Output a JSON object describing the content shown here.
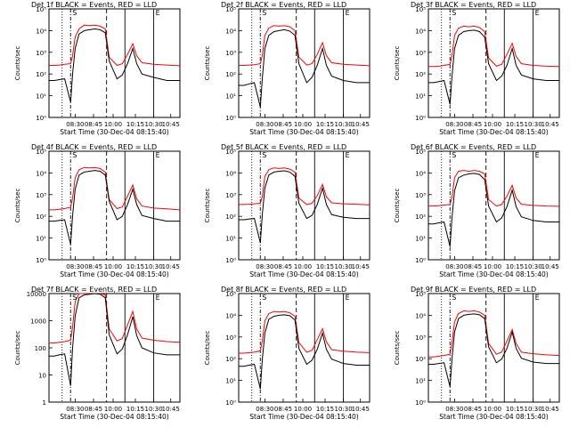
{
  "colors": {
    "events": "#000000",
    "lld": "#ff0000",
    "background": "#ffffff"
  },
  "chart_data": [
    {
      "type": "line",
      "title": "Det 1f BLACK = Events, RED = LLD",
      "xlabel": "Start Time (30-Dec-04 08:15:40)",
      "ylabel": "Counts/sec",
      "x_tick_labels": [
        "08:30",
        "08:45",
        "10:00",
        "10:15",
        "10:30",
        "10:45"
      ],
      "y_tick_labels": [
        "10⁰",
        "10¹",
        "10²",
        "10³",
        "10⁴",
        "10⁵"
      ],
      "ylim": [
        1,
        100000
      ],
      "y_scale": "log",
      "markers": [
        "S",
        "E"
      ],
      "series": [
        {
          "name": "Events",
          "color": "#000000",
          "values": [
            50,
            50,
            55,
            60,
            5,
            100,
            1500,
            7000,
            10000,
            11000,
            12000,
            11000,
            8000,
            400,
            60,
            90,
            300,
            1500,
            300,
            100,
            70,
            50,
            50
          ]
        },
        {
          "name": "LLD",
          "color": "#ff0000",
          "values": [
            250,
            250,
            260,
            280,
            300,
            700,
            5000,
            12000,
            18000,
            17000,
            18000,
            16000,
            12000,
            600,
            250,
            300,
            800,
            2500,
            700,
            330,
            280,
            260,
            240
          ]
        }
      ]
    },
    {
      "type": "line",
      "title": "Det 2f BLACK = Events, RED = LLD",
      "xlabel": "Start Time (30-Dec-04 08:15:40)",
      "ylabel": "Counts/sec",
      "x_tick_labels": [
        "08:30",
        "08:45",
        "10:00",
        "10:15",
        "10:30",
        "10:45"
      ],
      "y_tick_labels": [
        "10⁰",
        "10¹",
        "10²",
        "10³",
        "10⁴",
        "10⁵"
      ],
      "ylim": [
        1,
        100000
      ],
      "y_scale": "log",
      "markers": [
        "S",
        "E"
      ],
      "series": [
        {
          "name": "Events",
          "color": "#000000",
          "values": [
            30,
            30,
            35,
            40,
            3,
            60,
            1500,
            6000,
            9000,
            10000,
            11000,
            9500,
            6000,
            300,
            40,
            70,
            250,
            1500,
            250,
            80,
            50,
            40,
            40
          ]
        },
        {
          "name": "LLD",
          "color": "#ff0000",
          "values": [
            250,
            250,
            260,
            270,
            300,
            700,
            6000,
            13000,
            17000,
            16000,
            17000,
            15000,
            10000,
            600,
            260,
            300,
            800,
            2800,
            700,
            330,
            280,
            260,
            240
          ]
        }
      ]
    },
    {
      "type": "line",
      "title": "Det 3f BLACK = Events, RED = LLD",
      "xlabel": "Start Time (30-Dec-04 08:15:40)",
      "ylabel": "Counts/sec",
      "x_tick_labels": [
        "08:30",
        "08:45",
        "10:00",
        "10:15",
        "10:30",
        "10:45"
      ],
      "y_tick_labels": [
        "10⁰",
        "10¹",
        "10²",
        "10³",
        "10⁴",
        "10⁵"
      ],
      "ylim": [
        1,
        100000
      ],
      "y_scale": "log",
      "markers": [
        "S",
        "E"
      ],
      "series": [
        {
          "name": "Events",
          "color": "#000000",
          "values": [
            40,
            40,
            45,
            50,
            4,
            80,
            1500,
            6000,
            9000,
            10000,
            10500,
            9000,
            5000,
            300,
            50,
            80,
            250,
            1500,
            250,
            90,
            60,
            50,
            50
          ]
        },
        {
          "name": "LLD",
          "color": "#ff0000",
          "values": [
            220,
            220,
            230,
            250,
            280,
            700,
            6000,
            13000,
            16000,
            15000,
            16000,
            14000,
            9000,
            550,
            230,
            280,
            800,
            2600,
            650,
            300,
            250,
            230,
            220
          ]
        }
      ]
    },
    {
      "type": "line",
      "title": "Det 4f BLACK = Events, RED = LLD",
      "xlabel": "Start Time (30-Dec-04 08:15:40)",
      "ylabel": "Counts/sec",
      "x_tick_labels": [
        "08:30",
        "08:45",
        "10:00",
        "10:15",
        "10:30",
        "10:45"
      ],
      "y_tick_labels": [
        "10⁰",
        "10¹",
        "10²",
        "10³",
        "10⁴",
        "10⁵"
      ],
      "ylim": [
        1,
        100000
      ],
      "y_scale": "log",
      "markers": [
        "S",
        "E"
      ],
      "series": [
        {
          "name": "Events",
          "color": "#000000",
          "values": [
            60,
            60,
            65,
            70,
            5,
            110,
            1800,
            8000,
            11000,
            12000,
            13000,
            12000,
            8000,
            500,
            70,
            100,
            350,
            1800,
            350,
            110,
            80,
            60,
            60
          ]
        },
        {
          "name": "LLD",
          "color": "#ff0000",
          "values": [
            200,
            200,
            210,
            230,
            260,
            700,
            6000,
            14000,
            18000,
            17000,
            18000,
            16000,
            11000,
            600,
            230,
            270,
            850,
            2800,
            650,
            300,
            240,
            220,
            200
          ]
        }
      ]
    },
    {
      "type": "line",
      "title": "Det 5f BLACK = Events, RED = LLD",
      "xlabel": "Start Time (30-Dec-04 08:15:40)",
      "ylabel": "Counts/sec",
      "x_tick_labels": [
        "08:30",
        "08:45",
        "10:00",
        "10:15",
        "10:30",
        "10:45"
      ],
      "y_tick_labels": [
        "10⁰",
        "10¹",
        "10²",
        "10³",
        "10⁴",
        "10⁵"
      ],
      "ylim": [
        1,
        100000
      ],
      "y_scale": "log",
      "markers": [
        "S",
        "E"
      ],
      "series": [
        {
          "name": "Events",
          "color": "#000000",
          "values": [
            70,
            70,
            75,
            80,
            6,
            120,
            2000,
            8000,
            11000,
            12000,
            12500,
            11000,
            7000,
            400,
            80,
            110,
            350,
            2000,
            350,
            120,
            90,
            80,
            80
          ]
        },
        {
          "name": "LLD",
          "color": "#ff0000",
          "values": [
            350,
            350,
            360,
            380,
            400,
            800,
            7000,
            14000,
            17000,
            16000,
            17000,
            15000,
            11000,
            700,
            350,
            400,
            900,
            3000,
            800,
            420,
            380,
            360,
            340
          ]
        }
      ]
    },
    {
      "type": "line",
      "title": "Det 6f BLACK = Events, RED = LLD",
      "xlabel": "Start Time (30-Dec-04 08:15:40)",
      "ylabel": "Counts/sec",
      "x_tick_labels": [
        "08:30",
        "08:45",
        "10:00",
        "10:15",
        "10:30",
        "10:45"
      ],
      "y_tick_labels": [
        "10⁰",
        "10¹",
        "10²",
        "10³",
        "10⁴",
        "10⁵"
      ],
      "ylim": [
        1,
        100000
      ],
      "y_scale": "log",
      "markers": [
        "S",
        "E"
      ],
      "series": [
        {
          "name": "Events",
          "color": "#000000",
          "values": [
            45,
            45,
            50,
            55,
            4,
            90,
            1500,
            6000,
            8000,
            9000,
            9500,
            8500,
            5000,
            300,
            55,
            85,
            280,
            1600,
            280,
            95,
            65,
            55,
            55
          ]
        },
        {
          "name": "LLD",
          "color": "#ff0000",
          "values": [
            300,
            300,
            310,
            330,
            350,
            750,
            6000,
            12000,
            13000,
            12000,
            13000,
            12000,
            9000,
            600,
            300,
            350,
            850,
            2700,
            700,
            360,
            320,
            300,
            290
          ]
        }
      ]
    },
    {
      "type": "line",
      "title": "Det 7f BLACK = Events, RED = LLD",
      "xlabel": "Start Time (30-Dec-04 08:15:40)",
      "ylabel": "Counts/sec",
      "x_tick_labels": [
        "08:30",
        "08:45",
        "10:00",
        "10:15",
        "10:30",
        "10:45"
      ],
      "y_tick_labels": [
        "1",
        "10",
        "100",
        "1000",
        "10000"
      ],
      "ylim": [
        1,
        10000
      ],
      "y_scale": "log",
      "markers": [
        "S",
        "E"
      ],
      "series": [
        {
          "name": "Events",
          "color": "#000000",
          "values": [
            50,
            50,
            55,
            60,
            4,
            100,
            1500,
            7000,
            9000,
            9500,
            10000,
            9500,
            7000,
            300,
            60,
            90,
            300,
            1400,
            280,
            100,
            65,
            55,
            55
          ]
        },
        {
          "name": "LLD",
          "color": "#ff0000",
          "values": [
            150,
            150,
            160,
            170,
            190,
            600,
            5000,
            10000,
            10000,
            10000,
            10000,
            10000,
            9000,
            500,
            180,
            220,
            700,
            2200,
            500,
            230,
            190,
            170,
            160
          ]
        }
      ]
    },
    {
      "type": "line",
      "title": "Det 8f BLACK = Events, RED = LLD",
      "xlabel": "Start Time (30-Dec-04 08:15:40)",
      "ylabel": "Counts/sec",
      "x_tick_labels": [
        "08:30",
        "08:45",
        "10:00",
        "10:15",
        "10:30",
        "10:45"
      ],
      "y_tick_labels": [
        "10⁰",
        "10¹",
        "10²",
        "10³",
        "10⁴",
        "10⁵"
      ],
      "ylim": [
        1,
        100000
      ],
      "y_scale": "log",
      "markers": [
        "S",
        "E"
      ],
      "series": [
        {
          "name": "Events",
          "color": "#000000",
          "values": [
            45,
            45,
            50,
            55,
            4,
            90,
            1500,
            6500,
            9000,
            10000,
            10500,
            9500,
            6000,
            300,
            55,
            85,
            270,
            1500,
            270,
            95,
            60,
            50,
            50
          ]
        },
        {
          "name": "LLD",
          "color": "#ff0000",
          "values": [
            180,
            180,
            190,
            200,
            230,
            650,
            5500,
            12000,
            15000,
            14000,
            15000,
            13000,
            9000,
            550,
            200,
            240,
            750,
            2400,
            600,
            260,
            220,
            200,
            190
          ]
        }
      ]
    },
    {
      "type": "line",
      "title": "Det 9f BLACK = Events, RED = LLD",
      "xlabel": "Start Time (30-Dec-04 08:15:40)",
      "ylabel": "Counts/sec",
      "x_tick_labels": [
        "08:30",
        "08:45",
        "10:00",
        "10:15",
        "10:30",
        "10:45"
      ],
      "y_tick_labels": [
        "10⁰",
        "10¹",
        "10²",
        "10³",
        "10⁴",
        "10⁵"
      ],
      "ylim": [
        1,
        100000
      ],
      "y_scale": "log",
      "markers": [
        "S",
        "E"
      ],
      "series": [
        {
          "name": "Events",
          "color": "#000000",
          "values": [
            55,
            55,
            60,
            65,
            5,
            100,
            1700,
            7000,
            10000,
            11000,
            11500,
            10500,
            7000,
            350,
            65,
            95,
            300,
            1700,
            300,
            105,
            70,
            60,
            60
          ]
        },
        {
          "name": "LLD",
          "color": "#ff0000",
          "values": [
            120,
            120,
            130,
            140,
            160,
            550,
            5000,
            12000,
            16000,
            15000,
            16000,
            14000,
            10000,
            500,
            160,
            200,
            650,
            2200,
            500,
            200,
            170,
            150,
            140
          ]
        }
      ]
    }
  ]
}
